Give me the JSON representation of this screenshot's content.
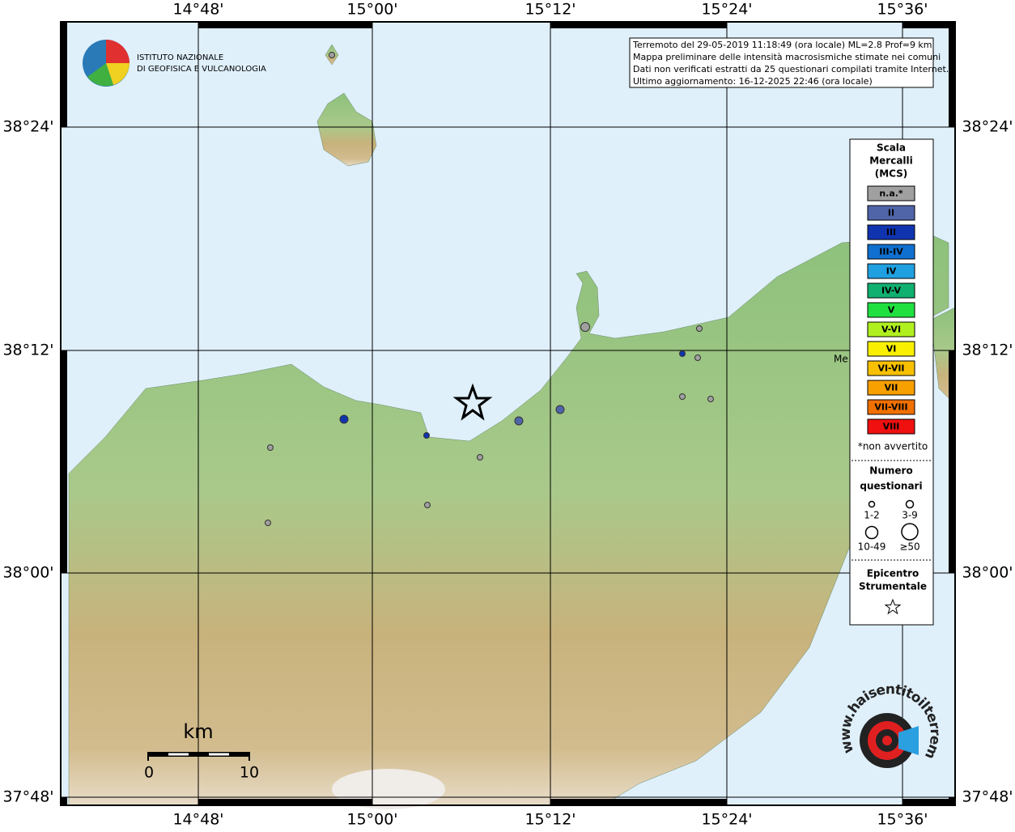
{
  "map": {
    "top_labels": [
      "14°48'",
      "15°00'",
      "15°12'",
      "15°24'",
      "15°36'"
    ],
    "bottom_labels": [
      "14°48'",
      "15°00'",
      "15°12'",
      "15°24'",
      "15°36'"
    ],
    "left_labels": [
      "38°24'",
      "38°12'",
      "38°00'",
      "37°48'"
    ],
    "right_labels": [
      "38°24'",
      "38°12'",
      "38°00'",
      "37°48'"
    ],
    "place_label": "Me",
    "scale": {
      "unit": "km",
      "start": "0",
      "end": "10"
    }
  },
  "logo": {
    "line1": "ISTITUTO NAZIONALE",
    "line2": "DI GEOFISICA E VULCANOLOGIA"
  },
  "info": {
    "lines": [
      "Terremoto del 29-05-2019 11:18:49 (ora locale) ML=2.8 Prof=9 km",
      "Mappa preliminare delle intensità macrosismiche stimate nei comuni",
      "Dati non verificati estratti da 25 questionari compilati tramite Internet.",
      "Ultimo aggiornamento: 16-12-2025 22:46 (ora locale)"
    ]
  },
  "legend": {
    "title": [
      "Scala",
      "Mercalli",
      "(MCS)"
    ],
    "items": [
      {
        "label": "n.a.*",
        "color": "#a0a0a0"
      },
      {
        "label": "II",
        "color": "#5064a8"
      },
      {
        "label": "III",
        "color": "#1034b0"
      },
      {
        "label": "III-IV",
        "color": "#1070d0"
      },
      {
        "label": "IV",
        "color": "#20a0e0"
      },
      {
        "label": "IV-V",
        "color": "#10b070"
      },
      {
        "label": "V",
        "color": "#20e040"
      },
      {
        "label": "V-VI",
        "color": "#b0f020"
      },
      {
        "label": "VI",
        "color": "#f8f000"
      },
      {
        "label": "VI-VII",
        "color": "#f8c000"
      },
      {
        "label": "VII",
        "color": "#f8a000"
      },
      {
        "label": "VII-VIII",
        "color": "#f07000"
      },
      {
        "label": "VIII",
        "color": "#f01010"
      }
    ],
    "note": "*non avvertito",
    "count_title": [
      "Numero",
      "questionari"
    ],
    "counts": [
      "1-2",
      "3-9",
      "10-49",
      "≥50"
    ],
    "epicenter_title": [
      "Epicentro",
      "Strumentale"
    ]
  },
  "badge": {
    "text": "www.haisentitoilterremoto.it"
  }
}
